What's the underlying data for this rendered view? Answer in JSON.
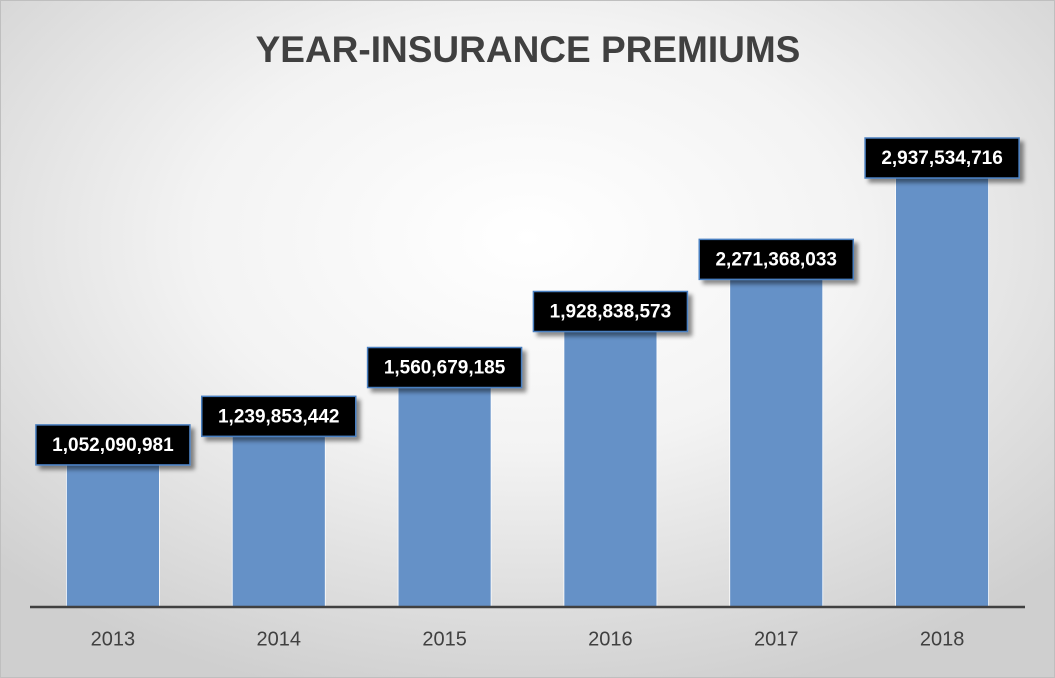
{
  "chart_data": {
    "type": "bar",
    "title": "YEAR-INSURANCE PREMIUMS",
    "categories": [
      "2013",
      "2014",
      "2015",
      "2016",
      "2017",
      "2018"
    ],
    "values": [
      1052090981,
      1239853442,
      1560679185,
      1928838573,
      2271368033,
      2937534716
    ],
    "value_labels": [
      "1,052,090,981",
      "1,239,853,442",
      "1,560,679,185",
      "1,928,838,573",
      "2,271,368,033",
      "2,937,534,716"
    ],
    "color": "#6591c7"
  }
}
